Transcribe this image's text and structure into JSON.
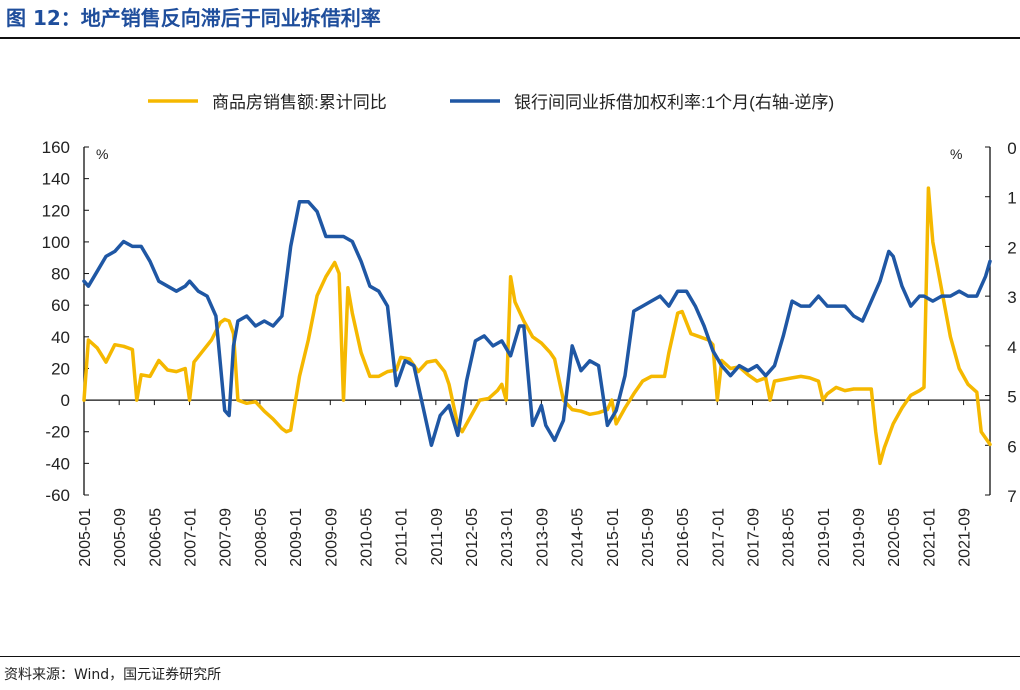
{
  "figure": {
    "title": "图 12：地产销售反向滞后于同业拆借利率",
    "source": "资料来源：Wind，国元证券研究所"
  },
  "colors": {
    "sales": "#f5b800",
    "interbank": "#1f57a4",
    "text": "#222222",
    "brand": "#1f4e9c"
  },
  "chart_data": {
    "type": "line",
    "legend": [
      "商品房销售额:累计同比",
      "银行间同业拆借加权利率:1个月(右轴-逆序)"
    ],
    "legend_position": "top",
    "grid": false,
    "left_axis": {
      "unit": "%",
      "range": [
        -60,
        160
      ],
      "ticks": [
        "160",
        "140",
        "120",
        "100",
        "80",
        "60",
        "40",
        "20",
        "0",
        "-20",
        "-40",
        "-60"
      ]
    },
    "right_axis": {
      "unit": "%",
      "range": [
        0,
        7
      ],
      "inverted": true,
      "ticks": [
        "0",
        "1",
        "2",
        "3",
        "4",
        "5",
        "6",
        "7"
      ]
    },
    "x_ticks": [
      "2005-01",
      "2005-09",
      "2006-05",
      "2007-01",
      "2007-09",
      "2008-05",
      "2009-01",
      "2009-09",
      "2010-05",
      "2011-01",
      "2011-09",
      "2012-05",
      "2013-01",
      "2013-09",
      "2014-05",
      "2015-01",
      "2015-09",
      "2016-05",
      "2017-01",
      "2017-09",
      "2018-05",
      "2019-01",
      "2019-09",
      "2020-05",
      "2021-01",
      "2021-09"
    ],
    "series": [
      {
        "name": "商品房销售额:累计同比",
        "axis": "left",
        "points": [
          [
            "2005-01",
            0
          ],
          [
            "2005-02",
            38
          ],
          [
            "2005-04",
            33
          ],
          [
            "2005-06",
            24
          ],
          [
            "2005-08",
            35
          ],
          [
            "2005-10",
            34
          ],
          [
            "2005-12",
            32
          ],
          [
            "2006-01",
            0
          ],
          [
            "2006-02",
            16
          ],
          [
            "2006-04",
            15
          ],
          [
            "2006-06",
            25
          ],
          [
            "2006-08",
            19
          ],
          [
            "2006-10",
            18
          ],
          [
            "2006-12",
            20
          ],
          [
            "2007-01",
            0
          ],
          [
            "2007-02",
            24
          ],
          [
            "2007-04",
            31
          ],
          [
            "2007-06",
            38
          ],
          [
            "2007-08",
            49
          ],
          [
            "2007-09",
            51
          ],
          [
            "2007-10",
            50
          ],
          [
            "2007-11",
            42
          ],
          [
            "2007-12",
            0
          ],
          [
            "2008-02",
            -2
          ],
          [
            "2008-04",
            -1
          ],
          [
            "2008-06",
            -7
          ],
          [
            "2008-08",
            -12
          ],
          [
            "2008-10",
            -18
          ],
          [
            "2008-11",
            -20
          ],
          [
            "2008-12",
            -19
          ],
          [
            "2009-02",
            15
          ],
          [
            "2009-04",
            38
          ],
          [
            "2009-06",
            66
          ],
          [
            "2009-08",
            78
          ],
          [
            "2009-10",
            87
          ],
          [
            "2009-11",
            80
          ],
          [
            "2009-12",
            0
          ],
          [
            "2010-01",
            71
          ],
          [
            "2010-02",
            55
          ],
          [
            "2010-04",
            30
          ],
          [
            "2010-06",
            15
          ],
          [
            "2010-08",
            15
          ],
          [
            "2010-10",
            18
          ],
          [
            "2010-12",
            19
          ],
          [
            "2011-01",
            27
          ],
          [
            "2011-03",
            26
          ],
          [
            "2011-05",
            18
          ],
          [
            "2011-07",
            24
          ],
          [
            "2011-09",
            25
          ],
          [
            "2011-11",
            18
          ],
          [
            "2011-12",
            10
          ],
          [
            "2012-02",
            -16
          ],
          [
            "2012-03",
            -20
          ],
          [
            "2012-05",
            -10
          ],
          [
            "2012-07",
            0
          ],
          [
            "2012-09",
            1
          ],
          [
            "2012-11",
            6
          ],
          [
            "2012-12",
            10
          ],
          [
            "2013-01",
            0
          ],
          [
            "2013-02",
            78
          ],
          [
            "2013-03",
            62
          ],
          [
            "2013-05",
            50
          ],
          [
            "2013-07",
            40
          ],
          [
            "2013-09",
            36
          ],
          [
            "2013-11",
            30
          ],
          [
            "2013-12",
            26
          ],
          [
            "2014-02",
            0
          ],
          [
            "2014-04",
            -6
          ],
          [
            "2014-06",
            -7
          ],
          [
            "2014-08",
            -9
          ],
          [
            "2014-10",
            -8
          ],
          [
            "2014-12",
            -6
          ],
          [
            "2015-01",
            0
          ],
          [
            "2015-02",
            -15
          ],
          [
            "2015-04",
            -5
          ],
          [
            "2015-06",
            4
          ],
          [
            "2015-08",
            12
          ],
          [
            "2015-10",
            15
          ],
          [
            "2015-12",
            15
          ],
          [
            "2016-01",
            15
          ],
          [
            "2016-02",
            30
          ],
          [
            "2016-04",
            55
          ],
          [
            "2016-05",
            56
          ],
          [
            "2016-07",
            42
          ],
          [
            "2016-09",
            40
          ],
          [
            "2016-11",
            38
          ],
          [
            "2016-12",
            35
          ],
          [
            "2017-01",
            0
          ],
          [
            "2017-02",
            25
          ],
          [
            "2017-04",
            20
          ],
          [
            "2017-06",
            21
          ],
          [
            "2017-08",
            16
          ],
          [
            "2017-10",
            12
          ],
          [
            "2017-12",
            14
          ],
          [
            "2018-01",
            0
          ],
          [
            "2018-02",
            12
          ],
          [
            "2018-04",
            13
          ],
          [
            "2018-06",
            14
          ],
          [
            "2018-08",
            15
          ],
          [
            "2018-10",
            14
          ],
          [
            "2018-12",
            12
          ],
          [
            "2019-01",
            0
          ],
          [
            "2019-02",
            4
          ],
          [
            "2019-04",
            8
          ],
          [
            "2019-06",
            6
          ],
          [
            "2019-08",
            7
          ],
          [
            "2019-10",
            7
          ],
          [
            "2019-12",
            7
          ],
          [
            "2020-01",
            -20
          ],
          [
            "2020-02",
            -40
          ],
          [
            "2020-03",
            -30
          ],
          [
            "2020-05",
            -15
          ],
          [
            "2020-07",
            -5
          ],
          [
            "2020-09",
            3
          ],
          [
            "2020-11",
            6
          ],
          [
            "2020-12",
            8
          ],
          [
            "2021-01",
            134
          ],
          [
            "2021-02",
            100
          ],
          [
            "2021-04",
            70
          ],
          [
            "2021-06",
            40
          ],
          [
            "2021-08",
            20
          ],
          [
            "2021-10",
            10
          ],
          [
            "2021-12",
            5
          ],
          [
            "2022-01",
            -20
          ],
          [
            "2022-03",
            -28
          ]
        ]
      },
      {
        "name": "银行间同业拆借加权利率:1个月(右轴-逆序)",
        "axis": "right",
        "points": [
          [
            "2005-01",
            2.7
          ],
          [
            "2005-02",
            2.8
          ],
          [
            "2005-04",
            2.5
          ],
          [
            "2005-06",
            2.2
          ],
          [
            "2005-08",
            2.1
          ],
          [
            "2005-10",
            1.9
          ],
          [
            "2005-12",
            2.0
          ],
          [
            "2006-02",
            2.0
          ],
          [
            "2006-04",
            2.3
          ],
          [
            "2006-06",
            2.7
          ],
          [
            "2006-08",
            2.8
          ],
          [
            "2006-10",
            2.9
          ],
          [
            "2006-12",
            2.8
          ],
          [
            "2007-01",
            2.7
          ],
          [
            "2007-03",
            2.9
          ],
          [
            "2007-05",
            3.0
          ],
          [
            "2007-07",
            3.4
          ],
          [
            "2007-09",
            5.3
          ],
          [
            "2007-10",
            5.4
          ],
          [
            "2007-11",
            4.0
          ],
          [
            "2007-12",
            3.5
          ],
          [
            "2008-02",
            3.4
          ],
          [
            "2008-04",
            3.6
          ],
          [
            "2008-06",
            3.5
          ],
          [
            "2008-08",
            3.6
          ],
          [
            "2008-10",
            3.4
          ],
          [
            "2008-12",
            2.0
          ],
          [
            "2009-02",
            1.1
          ],
          [
            "2009-04",
            1.1
          ],
          [
            "2009-06",
            1.3
          ],
          [
            "2009-08",
            1.8
          ],
          [
            "2009-10",
            1.8
          ],
          [
            "2009-12",
            1.8
          ],
          [
            "2010-02",
            1.9
          ],
          [
            "2010-04",
            2.3
          ],
          [
            "2010-06",
            2.8
          ],
          [
            "2010-08",
            2.9
          ],
          [
            "2010-10",
            3.2
          ],
          [
            "2010-12",
            4.8
          ],
          [
            "2011-02",
            4.3
          ],
          [
            "2011-04",
            4.4
          ],
          [
            "2011-06",
            5.2
          ],
          [
            "2011-08",
            6.0
          ],
          [
            "2011-10",
            5.4
          ],
          [
            "2011-12",
            5.2
          ],
          [
            "2012-02",
            5.8
          ],
          [
            "2012-04",
            4.7
          ],
          [
            "2012-06",
            3.9
          ],
          [
            "2012-08",
            3.8
          ],
          [
            "2012-10",
            4.0
          ],
          [
            "2012-12",
            3.9
          ],
          [
            "2013-02",
            4.2
          ],
          [
            "2013-04",
            3.6
          ],
          [
            "2013-05",
            3.6
          ],
          [
            "2013-07",
            5.6
          ],
          [
            "2013-09",
            5.2
          ],
          [
            "2013-10",
            5.6
          ],
          [
            "2013-12",
            5.9
          ],
          [
            "2014-02",
            5.5
          ],
          [
            "2014-04",
            4.0
          ],
          [
            "2014-06",
            4.5
          ],
          [
            "2014-08",
            4.3
          ],
          [
            "2014-10",
            4.4
          ],
          [
            "2014-12",
            5.6
          ],
          [
            "2015-02",
            5.3
          ],
          [
            "2015-04",
            4.6
          ],
          [
            "2015-06",
            3.3
          ],
          [
            "2015-08",
            3.2
          ],
          [
            "2015-10",
            3.1
          ],
          [
            "2015-12",
            3.0
          ],
          [
            "2016-02",
            3.2
          ],
          [
            "2016-04",
            2.9
          ],
          [
            "2016-06",
            2.9
          ],
          [
            "2016-08",
            3.2
          ],
          [
            "2016-10",
            3.6
          ],
          [
            "2016-12",
            4.1
          ],
          [
            "2017-02",
            4.4
          ],
          [
            "2017-04",
            4.6
          ],
          [
            "2017-06",
            4.4
          ],
          [
            "2017-08",
            4.5
          ],
          [
            "2017-10",
            4.4
          ],
          [
            "2017-12",
            4.6
          ],
          [
            "2018-02",
            4.4
          ],
          [
            "2018-04",
            3.8
          ],
          [
            "2018-06",
            3.1
          ],
          [
            "2018-08",
            3.2
          ],
          [
            "2018-10",
            3.2
          ],
          [
            "2018-12",
            3.0
          ],
          [
            "2019-02",
            3.2
          ],
          [
            "2019-04",
            3.2
          ],
          [
            "2019-06",
            3.2
          ],
          [
            "2019-08",
            3.4
          ],
          [
            "2019-10",
            3.5
          ],
          [
            "2019-12",
            3.1
          ],
          [
            "2020-02",
            2.7
          ],
          [
            "2020-04",
            2.1
          ],
          [
            "2020-05",
            2.2
          ],
          [
            "2020-07",
            2.8
          ],
          [
            "2020-09",
            3.2
          ],
          [
            "2020-11",
            3.0
          ],
          [
            "2020-12",
            3.0
          ],
          [
            "2021-02",
            3.1
          ],
          [
            "2021-04",
            3.0
          ],
          [
            "2021-06",
            3.0
          ],
          [
            "2021-08",
            2.9
          ],
          [
            "2021-10",
            3.0
          ],
          [
            "2021-12",
            3.0
          ],
          [
            "2022-02",
            2.6
          ],
          [
            "2022-03",
            2.3
          ]
        ]
      }
    ]
  }
}
